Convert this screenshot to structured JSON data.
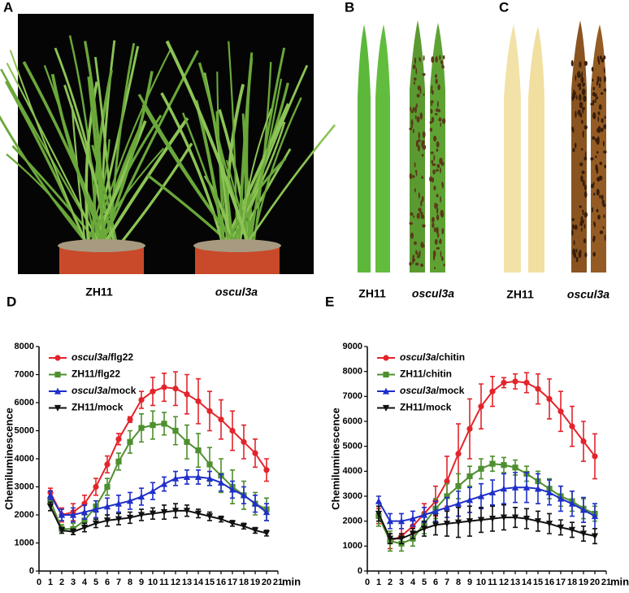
{
  "photo_panels": [
    {
      "label": "A",
      "captions": [
        "ZH11",
        "oscul3a"
      ]
    },
    {
      "label": "B",
      "captions": [
        "ZH11",
        "oscul3a"
      ]
    },
    {
      "label": "C",
      "captions": [
        "ZH11",
        "oscul3a"
      ]
    }
  ],
  "chart_data": [
    {
      "type": "line",
      "panel": "D",
      "ylabel": "Chemiluminescence",
      "xlabel": "min",
      "x": [
        1,
        2,
        3,
        4,
        5,
        6,
        7,
        8,
        9,
        10,
        11,
        12,
        13,
        14,
        15,
        16,
        17,
        18,
        19,
        20
      ],
      "xlim": [
        0,
        21
      ],
      "xticks": [
        0,
        1,
        2,
        3,
        4,
        5,
        6,
        7,
        8,
        9,
        10,
        11,
        12,
        13,
        14,
        15,
        16,
        17,
        18,
        19,
        20,
        21
      ],
      "ylim": [
        0,
        8000
      ],
      "yticks": [
        0,
        1000,
        2000,
        3000,
        4000,
        5000,
        6000,
        7000,
        8000
      ],
      "series": [
        {
          "name": "oscul3a/flg22",
          "color": "#e3242b",
          "marker": "circle",
          "values": [
            2800,
            2000,
            2100,
            2400,
            3000,
            3800,
            4700,
            5400,
            6100,
            6400,
            6550,
            6500,
            6300,
            6050,
            5700,
            5400,
            5000,
            4600,
            4200,
            3600
          ],
          "errors": [
            150,
            250,
            300,
            300,
            300,
            300,
            200,
            100,
            300,
            500,
            500,
            600,
            700,
            800,
            700,
            700,
            700,
            600,
            500,
            400
          ]
        },
        {
          "name": "ZH11/flg22",
          "color": "#4e8f2f",
          "marker": "square",
          "values": [
            2500,
            1500,
            1500,
            1800,
            2300,
            3000,
            3900,
            4600,
            5100,
            5200,
            5250,
            5000,
            4600,
            4300,
            3800,
            3400,
            3000,
            2700,
            2400,
            2200
          ],
          "errors": [
            150,
            150,
            200,
            200,
            200,
            300,
            300,
            400,
            500,
            500,
            400,
            500,
            600,
            600,
            600,
            600,
            600,
            500,
            400,
            400
          ]
        },
        {
          "name": "oscul3a/mock",
          "color": "#1f2fc9",
          "marker": "triangle",
          "values": [
            2700,
            2000,
            2000,
            2100,
            2200,
            2300,
            2400,
            2500,
            2650,
            2850,
            3100,
            3300,
            3350,
            3350,
            3300,
            3150,
            2900,
            2700,
            2400,
            2100
          ],
          "errors": [
            150,
            200,
            250,
            250,
            300,
            300,
            300,
            300,
            300,
            300,
            250,
            250,
            250,
            250,
            250,
            300,
            300,
            300,
            300,
            300
          ]
        },
        {
          "name": "ZH11/mock",
          "color": "#111111",
          "marker": "triangle-down",
          "values": [
            2300,
            1450,
            1400,
            1550,
            1700,
            1800,
            1850,
            1900,
            2000,
            2050,
            2100,
            2150,
            2150,
            2050,
            1950,
            1850,
            1700,
            1600,
            1450,
            1350
          ],
          "errors": [
            150,
            100,
            100,
            150,
            150,
            200,
            200,
            200,
            200,
            200,
            250,
            250,
            200,
            150,
            150,
            100,
            100,
            100,
            100,
            100
          ]
        }
      ]
    },
    {
      "type": "line",
      "panel": "E",
      "ylabel": "Chemiluminescence",
      "xlabel": "min",
      "x": [
        1,
        2,
        3,
        4,
        5,
        6,
        7,
        8,
        9,
        10,
        11,
        12,
        13,
        14,
        15,
        16,
        17,
        18,
        19,
        20
      ],
      "xlim": [
        0,
        21
      ],
      "xticks": [
        0,
        1,
        2,
        3,
        4,
        5,
        6,
        7,
        8,
        9,
        10,
        11,
        12,
        13,
        14,
        15,
        16,
        17,
        18,
        19,
        20,
        21
      ],
      "ylim": [
        0,
        9000
      ],
      "yticks": [
        0,
        1000,
        2000,
        3000,
        4000,
        5000,
        6000,
        7000,
        8000,
        9000
      ],
      "series": [
        {
          "name": "oscul3a/chitin",
          "color": "#e3242b",
          "marker": "circle",
          "values": [
            2200,
            1200,
            1400,
            1800,
            2300,
            2800,
            3600,
            4700,
            5700,
            6600,
            7200,
            7550,
            7600,
            7550,
            7300,
            6900,
            6400,
            5800,
            5200,
            4600
          ],
          "errors": [
            300,
            300,
            300,
            300,
            400,
            600,
            1000,
            1200,
            1200,
            900,
            600,
            200,
            300,
            400,
            600,
            800,
            800,
            800,
            800,
            900
          ]
        },
        {
          "name": "ZH11/chitin",
          "color": "#4e8f2f",
          "marker": "square",
          "values": [
            2200,
            1200,
            1100,
            1300,
            1900,
            2500,
            3000,
            3400,
            3800,
            4100,
            4300,
            4250,
            4150,
            3900,
            3600,
            3300,
            3000,
            2800,
            2500,
            2300
          ],
          "errors": [
            400,
            400,
            300,
            300,
            400,
            400,
            500,
            500,
            400,
            400,
            300,
            300,
            300,
            300,
            400,
            400,
            400,
            400,
            400,
            300
          ]
        },
        {
          "name": "oscul3a/mock",
          "color": "#1f2fc9",
          "marker": "triangle",
          "values": [
            2800,
            2000,
            2000,
            2100,
            2250,
            2400,
            2550,
            2700,
            2850,
            3000,
            3150,
            3300,
            3350,
            3350,
            3300,
            3150,
            2900,
            2700,
            2450,
            2200
          ],
          "errors": [
            200,
            300,
            300,
            300,
            300,
            400,
            400,
            500,
            500,
            500,
            500,
            600,
            600,
            600,
            600,
            500,
            500,
            500,
            500,
            500
          ]
        },
        {
          "name": "ZH11/mock",
          "color": "#111111",
          "marker": "triangle-down",
          "values": [
            2300,
            1300,
            1300,
            1500,
            1700,
            1850,
            1900,
            1950,
            2000,
            2050,
            2100,
            2150,
            2150,
            2100,
            2000,
            1900,
            1750,
            1650,
            1500,
            1400
          ],
          "errors": [
            300,
            200,
            200,
            200,
            300,
            400,
            500,
            600,
            600,
            500,
            500,
            500,
            400,
            400,
            400,
            400,
            300,
            300,
            300,
            300
          ]
        }
      ]
    }
  ]
}
